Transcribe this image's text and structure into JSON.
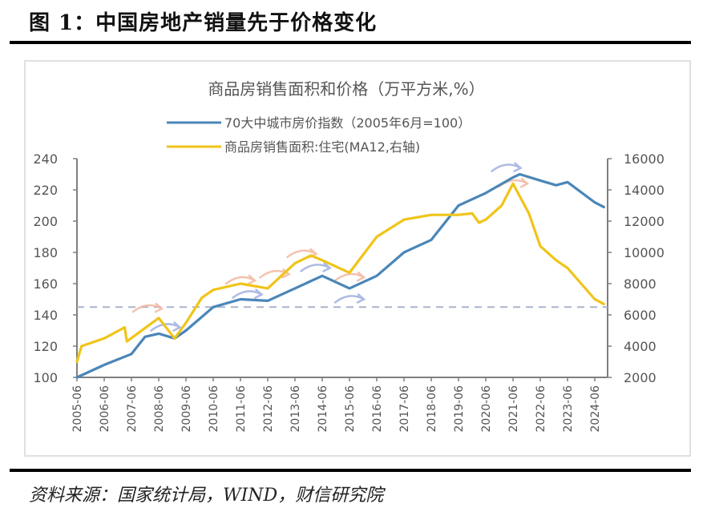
{
  "figure": {
    "title": "图 1：中国房地产销量先于价格变化",
    "source": "资料来源：国家统计局，WIND，财信研究院"
  },
  "chart_data": {
    "type": "line",
    "title": "商品房销售面积和价格（万平方米,%）",
    "xlabel": "",
    "ylabel": "",
    "grid": false,
    "legend_position": "top-center",
    "x_tick_labels": [
      "2005-06",
      "2006-06",
      "2007-06",
      "2008-06",
      "2009-06",
      "2010-06",
      "2011-06",
      "2012-06",
      "2013-06",
      "2014-06",
      "2015-06",
      "2016-06",
      "2017-06",
      "2018-06",
      "2019-06",
      "2020-06",
      "2021-06",
      "2022-06",
      "2023-06",
      "2024-06"
    ],
    "y_left": {
      "range": [
        100,
        240
      ],
      "ticks": [
        100,
        120,
        140,
        160,
        180,
        200,
        220,
        240
      ]
    },
    "y_right": {
      "range": [
        2000,
        16000
      ],
      "ticks": [
        2000,
        4000,
        6000,
        8000,
        10000,
        12000,
        14000,
        16000
      ]
    },
    "reference_line": {
      "axis": "left",
      "value": 145,
      "style": "dashed",
      "color": "#a9b4cc"
    },
    "series": [
      {
        "name": "70大中城市房价指数（2005年6月=100）",
        "axis": "left",
        "color": "#4a86b8",
        "x": [
          "2005-06",
          "2006-06",
          "2007-06",
          "2007-12",
          "2008-06",
          "2009-01",
          "2009-06",
          "2010-06",
          "2011-06",
          "2012-06",
          "2013-06",
          "2014-06",
          "2015-06",
          "2016-06",
          "2017-06",
          "2018-06",
          "2019-06",
          "2020-06",
          "2021-06",
          "2021-09",
          "2022-06",
          "2023-01",
          "2023-06",
          "2024-06",
          "2024-10"
        ],
        "values": [
          100,
          108,
          115,
          126,
          128,
          125,
          130,
          145,
          150,
          149,
          157,
          165,
          157,
          165,
          180,
          188,
          210,
          218,
          228,
          230,
          226,
          223,
          225,
          212,
          209
        ]
      },
      {
        "name": "商品房销售面积:住宅(MA12,右轴)",
        "axis": "right",
        "color": "#f0c419",
        "x": [
          "2005-06",
          "2005-08",
          "2006-06",
          "2007-03",
          "2007-04",
          "2008-06",
          "2009-01",
          "2009-06",
          "2010-01",
          "2010-06",
          "2011-06",
          "2012-06",
          "2013-06",
          "2014-01",
          "2014-06",
          "2015-06",
          "2016-06",
          "2017-06",
          "2018-06",
          "2019-06",
          "2019-12",
          "2020-03",
          "2020-06",
          "2021-01",
          "2021-06",
          "2022-01",
          "2022-06",
          "2023-01",
          "2023-06",
          "2024-06",
          "2024-10"
        ],
        "values": [
          3000,
          4000,
          4500,
          5200,
          4300,
          5800,
          4500,
          5500,
          7100,
          7600,
          8000,
          7700,
          9300,
          9800,
          9500,
          8700,
          11000,
          12100,
          12400,
          12400,
          12500,
          11900,
          12100,
          13000,
          14400,
          12500,
          10400,
          9500,
          9000,
          7000,
          6700
        ]
      }
    ],
    "annotations": [
      {
        "type": "arrow",
        "color": "#f2b8a0",
        "near": "2008-01",
        "axis": "left",
        "level": 144
      },
      {
        "type": "arrow",
        "color": "#9fb0e0",
        "near": "2008-09",
        "axis": "left",
        "level": 132
      },
      {
        "type": "arrow",
        "color": "#f2b8a0",
        "near": "2011-06",
        "axis": "left",
        "level": 162
      },
      {
        "type": "arrow",
        "color": "#9fb0e0",
        "near": "2011-09",
        "axis": "left",
        "level": 153
      },
      {
        "type": "arrow",
        "color": "#f2b8a0",
        "near": "2012-09",
        "axis": "left",
        "level": 166
      },
      {
        "type": "arrow",
        "color": "#f2b8a0",
        "near": "2013-09",
        "axis": "left",
        "level": 179
      },
      {
        "type": "arrow",
        "color": "#9fb0e0",
        "near": "2014-03",
        "axis": "left",
        "level": 170
      },
      {
        "type": "arrow",
        "color": "#f2b8a0",
        "near": "2015-06",
        "axis": "left",
        "level": 164
      },
      {
        "type": "arrow",
        "color": "#9fb0e0",
        "near": "2015-06",
        "axis": "left",
        "level": 150
      },
      {
        "type": "arrow",
        "color": "#9fb0e0",
        "near": "2021-03",
        "axis": "left",
        "level": 234
      },
      {
        "type": "arrow",
        "color": "#f2b8a0",
        "near": "2021-06",
        "axis": "left",
        "level": 224
      }
    ]
  }
}
